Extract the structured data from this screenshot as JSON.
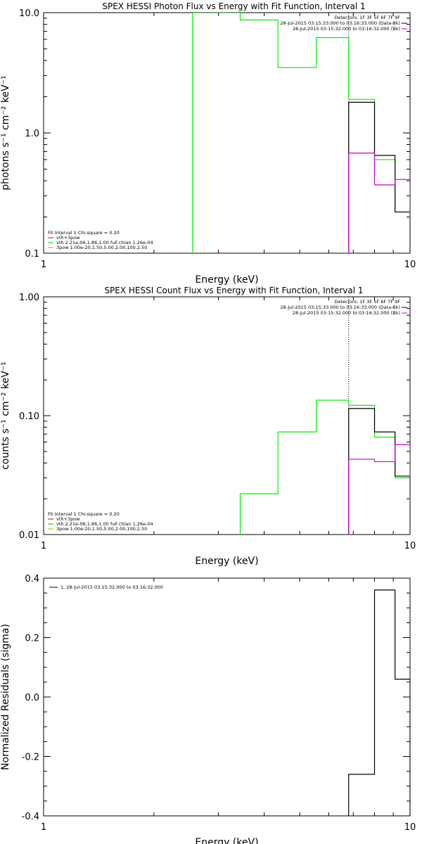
{
  "chart_data": [
    {
      "type": "line",
      "title": "SPEX HESSI Photon Flux vs Energy with Fit Function, Interval 1",
      "xlabel": "Energy (keV)",
      "ylabel": "photons s⁻¹ cm⁻² keV⁻¹",
      "xscale": "log",
      "yscale": "log",
      "xlim": [
        1,
        10
      ],
      "ylim": [
        0.1,
        10
      ],
      "xticks": [
        {
          "v": 1,
          "label": "1"
        },
        {
          "v": 10,
          "label": "10"
        }
      ],
      "yticks": [
        {
          "v": 0.1,
          "label": "0.1"
        },
        {
          "v": 1,
          "label": "1.0"
        },
        {
          "v": 10,
          "label": "10.0"
        }
      ],
      "info_top": [
        {
          "text": "Detectors: 1F 3F 5F 6F 7F 9F",
          "color": ""
        },
        {
          "text": "28-Jul-2015 03:15:33.000 to 03:16:33.000 (Data-Bk)",
          "color": "#000000"
        },
        {
          "text": "28-Jul-2015 03:15:32.000 to 03:16:32.000 (Bk)",
          "color": "#cc00cc"
        }
      ],
      "legend": [
        {
          "text": "Fit Interval 1    Chi-square = 0.20",
          "color": ""
        },
        {
          "text": "vth+3pow",
          "color": "#cc0000"
        },
        {
          "text": "vth 2.21e-06,1.86,1.00  full chian 1.26e-04",
          "color": "#00cc00"
        },
        {
          "text": "3pow 1.00e-20,1.50,5.00,2.00,100,2.50",
          "color": "#cc9900"
        }
      ],
      "marker_x": 6.8,
      "series": [
        {
          "color": "#00ee00",
          "edges": [
            2.55,
            3.44,
            4.36,
            5.55,
            6.8,
            8.0,
            9.1,
            10
          ],
          "values": [
            10,
            8.7,
            3.5,
            6.2,
            1.9,
            0.6,
            0.22
          ]
        },
        {
          "color": "#000000",
          "edges": [
            6.8,
            8.0,
            9.1,
            10
          ],
          "values": [
            1.8,
            0.65,
            0.22
          ]
        },
        {
          "color": "#cc00cc",
          "edges": [
            6.8,
            8.0,
            9.1,
            10
          ],
          "values": [
            0.68,
            0.37,
            0.41
          ]
        }
      ]
    },
    {
      "type": "line",
      "title": "SPEX HESSI Count Flux vs Energy with Fit Function, Interval 1",
      "xlabel": "Energy (keV)",
      "ylabel": "counts s⁻¹ cm⁻² keV⁻¹",
      "xscale": "log",
      "yscale": "log",
      "xlim": [
        1,
        10
      ],
      "ylim": [
        0.01,
        1
      ],
      "xticks": [
        {
          "v": 1,
          "label": "1"
        },
        {
          "v": 10,
          "label": "10"
        }
      ],
      "yticks": [
        {
          "v": 0.01,
          "label": "0.01"
        },
        {
          "v": 0.1,
          "label": "0.10"
        },
        {
          "v": 1,
          "label": "1.00"
        }
      ],
      "info_top": [
        {
          "text": "Detectors: 1F 3F 5F 6F 7F 9F",
          "color": ""
        },
        {
          "text": "28-Jul-2015 03:15:33.000 to 03:16:33.000 (Data-Bk)",
          "color": "#000000"
        },
        {
          "text": "28-Jul-2015 03:15:32.000 to 03:16:32.000 (Bk)",
          "color": "#cc00cc"
        }
      ],
      "legend": [
        {
          "text": "Fit Interval 1    Chi-square = 0.20",
          "color": ""
        },
        {
          "text": "vth+3pow",
          "color": "#cc0000"
        },
        {
          "text": "vth 2.21e-06,1.86,1.00  full chian 1.26e-04",
          "color": "#00cc00"
        },
        {
          "text": "3pow 1.00e-20,1.50,5.00,2.00,100,2.50",
          "color": "#cc9900"
        }
      ],
      "marker_x": 6.8,
      "series": [
        {
          "color": "#00ee00",
          "edges": [
            3.44,
            4.36,
            5.55,
            6.8,
            8.0,
            9.1,
            10
          ],
          "values": [
            0.022,
            0.073,
            0.135,
            0.122,
            0.066,
            0.03
          ]
        },
        {
          "color": "#000000",
          "edges": [
            6.8,
            8.0,
            9.1,
            10
          ],
          "values": [
            0.115,
            0.073,
            0.031
          ]
        },
        {
          "color": "#cc00cc",
          "edges": [
            6.8,
            8.0,
            9.1,
            10
          ],
          "values": [
            0.043,
            0.041,
            0.057
          ]
        }
      ]
    },
    {
      "type": "line",
      "title": "",
      "xlabel": "Energy (keV)",
      "ylabel": "Normalized Residuals (sigma)",
      "xscale": "log",
      "yscale": "linear",
      "xlim": [
        1,
        10
      ],
      "ylim": [
        -0.4,
        0.4
      ],
      "xticks": [
        {
          "v": 1,
          "label": "1"
        },
        {
          "v": 10,
          "label": "10"
        }
      ],
      "yticks": [
        {
          "v": -0.4,
          "label": "-0.4"
        },
        {
          "v": -0.2,
          "label": "-0.2"
        },
        {
          "v": 0,
          "label": "0.0"
        },
        {
          "v": 0.2,
          "label": "0.2"
        },
        {
          "v": 0.4,
          "label": "0.4"
        }
      ],
      "info_top": [],
      "legend_top": [
        {
          "text": "1. 28-Jul-2015 03:15:32.000 to 03:16:32.000",
          "color": "#000000"
        }
      ],
      "legend": [],
      "series": [
        {
          "color": "#000000",
          "edges": [
            6.8,
            8.0,
            9.1,
            10
          ],
          "values": [
            -0.26,
            0.36,
            0.06
          ]
        }
      ]
    }
  ]
}
